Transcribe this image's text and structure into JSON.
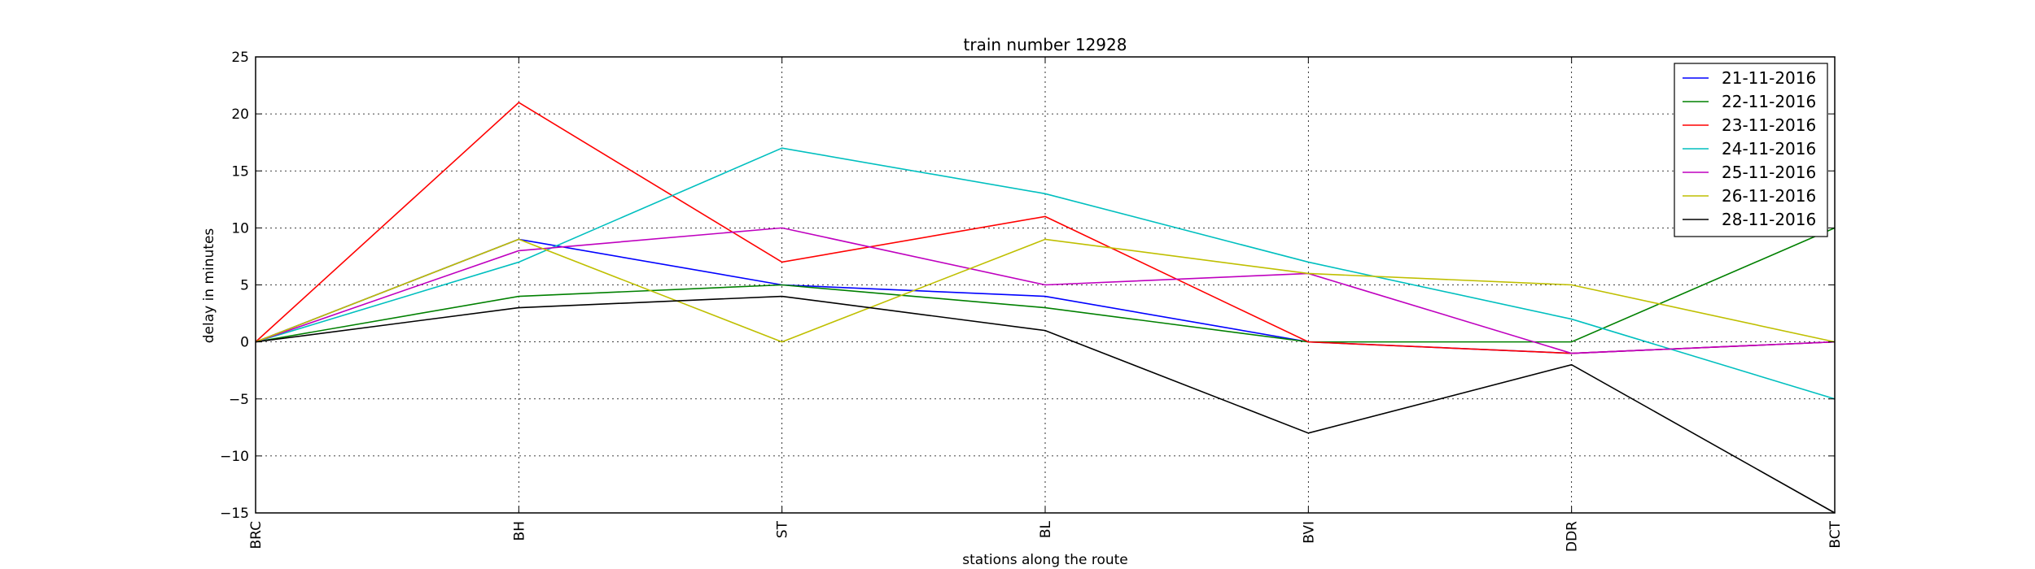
{
  "chart_data": {
    "type": "line",
    "title": "train number 12928",
    "xlabel": "stations along the route",
    "ylabel": "delay in minutes",
    "categories": [
      "BRC",
      "BH",
      "ST",
      "BL",
      "BVI",
      "DDR",
      "BCT"
    ],
    "ylim": [
      -15,
      25
    ],
    "yticks": [
      -15,
      -10,
      -5,
      0,
      5,
      10,
      15,
      20,
      25
    ],
    "grid": true,
    "legend_position": "top-right",
    "series": [
      {
        "name": "21-11-2016",
        "color": "#0000ff",
        "values": [
          0,
          9,
          5,
          4,
          0,
          -1,
          0
        ]
      },
      {
        "name": "22-11-2016",
        "color": "#008000",
        "values": [
          0,
          4,
          5,
          3,
          0,
          0,
          10
        ]
      },
      {
        "name": "23-11-2016",
        "color": "#ff0000",
        "values": [
          0,
          21,
          7,
          11,
          0,
          -1,
          0
        ]
      },
      {
        "name": "24-11-2016",
        "color": "#00bfbf",
        "values": [
          0,
          7,
          17,
          13,
          7,
          2,
          -5
        ]
      },
      {
        "name": "25-11-2016",
        "color": "#bf00bf",
        "values": [
          0,
          8,
          10,
          5,
          6,
          -1,
          0
        ]
      },
      {
        "name": "26-11-2016",
        "color": "#bfbf00",
        "values": [
          0,
          9,
          0,
          9,
          6,
          5,
          0
        ]
      },
      {
        "name": "28-11-2016",
        "color": "#000000",
        "values": [
          0,
          3,
          4,
          1,
          -8,
          -2,
          -15
        ]
      }
    ]
  }
}
